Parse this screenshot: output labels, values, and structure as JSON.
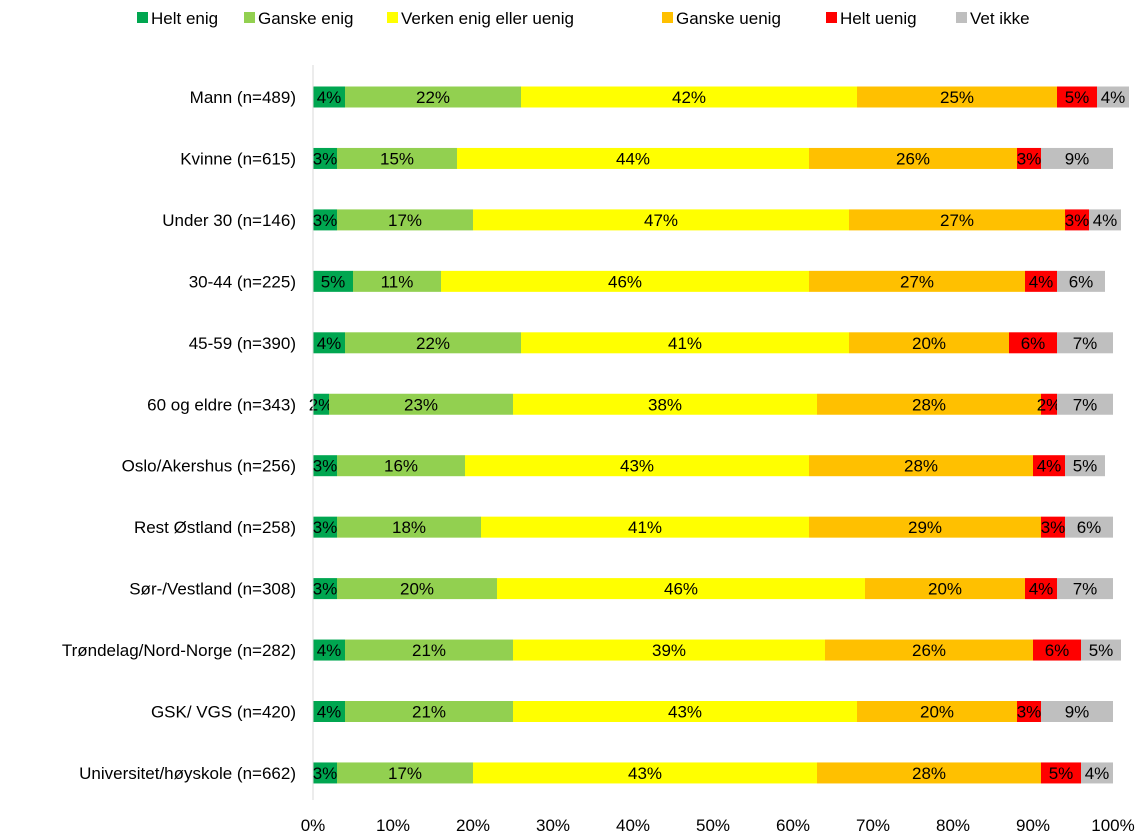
{
  "chart_data": {
    "type": "bar",
    "orientation": "horizontal",
    "stacked": true,
    "normalized": true,
    "title": "",
    "xlabel": "",
    "ylabel": "",
    "xlim": [
      0,
      100
    ],
    "x_ticks": [
      "0%",
      "10%",
      "20%",
      "30%",
      "40%",
      "50%",
      "60%",
      "70%",
      "80%",
      "90%",
      "100%"
    ],
    "grid": false,
    "legend_position": "top",
    "categories": [
      "Mann (n=489)",
      "Kvinne (n=615)",
      "Under 30 (n=146)",
      "30-44 (n=225)",
      "45-59 (n=390)",
      "60 og eldre (n=343)",
      "Oslo/Akershus (n=256)",
      "Rest Østland (n=258)",
      "Sør-/Vestland (n=308)",
      "Trøndelag/Nord-Norge (n=282)",
      "GSK/ VGS (n=420)",
      "Universitet/høyskole (n=662)"
    ],
    "series": [
      {
        "name": "Helt enig",
        "color": "#00A650",
        "values": [
          4,
          3,
          3,
          5,
          4,
          2,
          3,
          3,
          3,
          4,
          4,
          3
        ]
      },
      {
        "name": "Ganske enig",
        "color": "#92D050",
        "values": [
          22,
          15,
          17,
          11,
          22,
          23,
          16,
          18,
          20,
          21,
          21,
          17
        ]
      },
      {
        "name": "Verken enig eller uenig",
        "color": "#FFFF00",
        "values": [
          42,
          44,
          47,
          46,
          41,
          38,
          43,
          41,
          46,
          39,
          43,
          43
        ]
      },
      {
        "name": "Ganske uenig",
        "color": "#FFC000",
        "values": [
          25,
          26,
          27,
          27,
          20,
          28,
          28,
          29,
          20,
          26,
          20,
          28
        ]
      },
      {
        "name": "Helt uenig",
        "color": "#FF0000",
        "values": [
          5,
          3,
          3,
          4,
          6,
          2,
          4,
          3,
          4,
          6,
          3,
          5
        ]
      },
      {
        "name": "Vet ikke",
        "color": "#BFBFBF",
        "values": [
          4,
          9,
          4,
          6,
          7,
          7,
          5,
          6,
          7,
          5,
          9,
          4
        ]
      }
    ]
  }
}
